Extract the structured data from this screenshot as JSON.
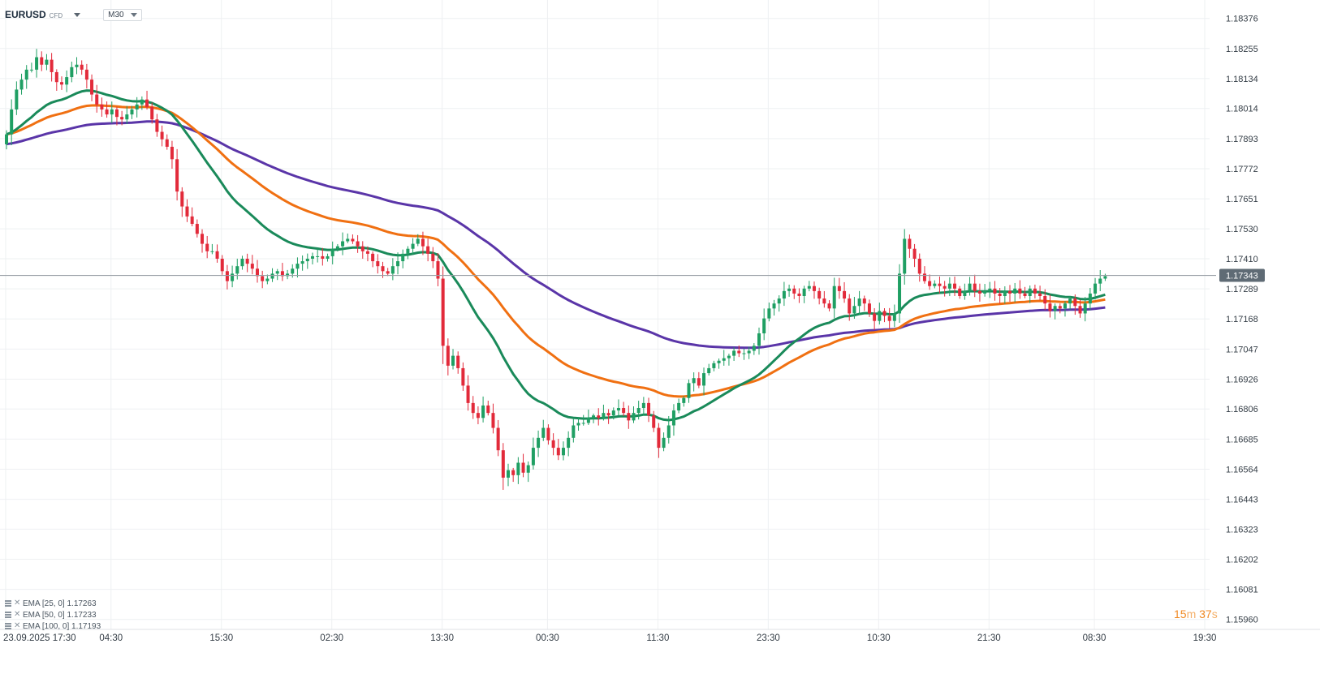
{
  "header": {
    "symbol": "EURUSD",
    "symbol_type": "CFD",
    "timeframe": "M30"
  },
  "countdown": {
    "minutes": "15",
    "m_unit": "m",
    "seconds": "37",
    "s_unit": "s"
  },
  "legend": [
    {
      "label": "EMA [25, 0] 1.17263"
    },
    {
      "label": "EMA [50, 0] 1.17233"
    },
    {
      "label": "EMA [100, 0] 1.17193"
    }
  ],
  "colors": {
    "up": "#1f9f63",
    "down": "#e22a3a",
    "ema25": "#1a8a5a",
    "ema50": "#f07012",
    "ema100": "#5a35a8",
    "current_price_line": "#9aa0a6",
    "current_price_label_bg": "#5f6b75",
    "grid": "#eef0f2",
    "axis_text": "#333c45"
  },
  "chart_data": {
    "type": "candlestick",
    "symbol": "EURUSD",
    "timeframe": "M30",
    "y_ticks": [
      1.18376,
      1.18255,
      1.18134,
      1.18014,
      1.17893,
      1.17772,
      1.17651,
      1.1753,
      1.1741,
      1.17289,
      1.17168,
      1.17047,
      1.16926,
      1.16806,
      1.16685,
      1.16564,
      1.16443,
      1.16323,
      1.16202,
      1.16081,
      1.1596
    ],
    "y_tick_labels": [
      "1.18376",
      "1.18255",
      "1.18134",
      "1.18014",
      "1.17893",
      "1.17772",
      "1.17651",
      "1.17530",
      "1.17410",
      "1.17289",
      "1.17168",
      "1.17047",
      "1.16926",
      "1.16806",
      "1.16685",
      "1.16564",
      "1.16443",
      "1.16323",
      "1.16202",
      "1.16081",
      "1.15960"
    ],
    "ylim": [
      1.1592,
      1.1845
    ],
    "x_tick_labels": [
      "23.09.2025  17:30",
      "04:30",
      "15:30",
      "02:30",
      "13:30",
      "00:30",
      "11:30",
      "23:30",
      "10:30",
      "21:30",
      "08:30",
      "19:30"
    ],
    "x_tick_bars": [
      0,
      21,
      43,
      65,
      87,
      108,
      130,
      152,
      174,
      196,
      217,
      239
    ],
    "current_price": 1.17343,
    "current_price_label": "1.17343",
    "close_series": [
      1.1791,
      1.1801,
      1.1809,
      1.1813,
      1.1817,
      1.1817,
      1.1822,
      1.1819,
      1.1821,
      1.1816,
      1.1812,
      1.1811,
      1.1814,
      1.1818,
      1.1819,
      1.1817,
      1.1813,
      1.1807,
      1.1803,
      1.1801,
      1.1799,
      1.1801,
      1.1798,
      1.1797,
      1.1799,
      1.1801,
      1.1803,
      1.1805,
      1.1802,
      1.1797,
      1.1792,
      1.1789,
      1.1786,
      1.1781,
      1.1768,
      1.1762,
      1.1758,
      1.1755,
      1.1751,
      1.1747,
      1.1744,
      1.1744,
      1.1741,
      1.1736,
      1.1732,
      1.1735,
      1.1738,
      1.1741,
      1.1739,
      1.1737,
      1.1734,
      1.1732,
      1.1733,
      1.1735,
      1.1736,
      1.1734,
      1.1735,
      1.1737,
      1.1739,
      1.174,
      1.1741,
      1.1742,
      1.1742,
      1.1741,
      1.1742,
      1.1745,
      1.1746,
      1.1748,
      1.1749,
      1.1748,
      1.1746,
      1.1744,
      1.1743,
      1.174,
      1.1738,
      1.1736,
      1.1735,
      1.1738,
      1.174,
      1.1743,
      1.1745,
      1.1747,
      1.1749,
      1.1746,
      1.1743,
      1.174,
      1.1733,
      1.1706,
      1.1698,
      1.1702,
      1.1697,
      1.169,
      1.1683,
      1.1679,
      1.1677,
      1.1682,
      1.1679,
      1.1673,
      1.1664,
      1.1653,
      1.1656,
      1.1654,
      1.1659,
      1.1655,
      1.1658,
      1.1665,
      1.1669,
      1.1673,
      1.1668,
      1.1665,
      1.1662,
      1.1665,
      1.1669,
      1.1674,
      1.1675,
      1.1675,
      1.1677,
      1.1678,
      1.1677,
      1.1679,
      1.1678,
      1.168,
      1.1681,
      1.1679,
      1.1676,
      1.1679,
      1.1681,
      1.1683,
      1.1678,
      1.1673,
      1.1665,
      1.1669,
      1.1674,
      1.168,
      1.1683,
      1.1685,
      1.1691,
      1.1693,
      1.169,
      1.1695,
      1.1697,
      1.1699,
      1.17,
      1.1701,
      1.1702,
      1.1704,
      1.1703,
      1.1703,
      1.1704,
      1.1706,
      1.1711,
      1.1717,
      1.1721,
      1.1723,
      1.1725,
      1.1728,
      1.1729,
      1.1727,
      1.1726,
      1.1729,
      1.173,
      1.1728,
      1.1725,
      1.1723,
      1.1721,
      1.173,
      1.1728,
      1.1725,
      1.1719,
      1.1722,
      1.1725,
      1.1723,
      1.1719,
      1.1716,
      1.172,
      1.1718,
      1.1716,
      1.1719,
      1.1735,
      1.1749,
      1.1745,
      1.1741,
      1.1735,
      1.1732,
      1.173,
      1.1731,
      1.173,
      1.1729,
      1.1731,
      1.1729,
      1.1726,
      1.1728,
      1.1731,
      1.1728,
      1.1727,
      1.1728,
      1.1729,
      1.1727,
      1.1726,
      1.1728,
      1.1727,
      1.1729,
      1.1727,
      1.1726,
      1.1729,
      1.1727,
      1.1726,
      1.1723,
      1.172,
      1.1722,
      1.1721,
      1.1723,
      1.1725,
      1.1722,
      1.1719,
      1.1723,
      1.1727,
      1.1731,
      1.1733,
      1.1734
    ]
  }
}
